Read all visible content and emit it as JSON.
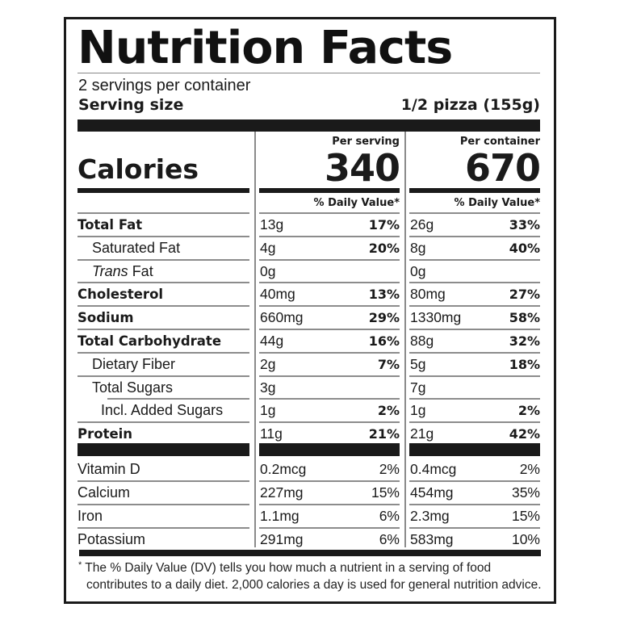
{
  "title": "Nutrition Facts",
  "servings_per_container": "2 servings per container",
  "serving_size": {
    "label": "Serving size",
    "value": "1/2 pizza (155g)"
  },
  "columns": [
    {
      "header": "Per serving",
      "calories": "340",
      "dv_header": "% Daily Value*"
    },
    {
      "header": "Per container",
      "calories": "670",
      "dv_header": "% Daily Value*"
    }
  ],
  "calories_label": "Calories",
  "nutrients": [
    {
      "label": "Total Fat",
      "style": "bold",
      "serving": {
        "amount": "13g",
        "dv": "17%"
      },
      "container": {
        "amount": "26g",
        "dv": "33%"
      }
    },
    {
      "label": "Saturated Fat",
      "style": "indent1",
      "serving": {
        "amount": "4g",
        "dv": "20%"
      },
      "container": {
        "amount": "8g",
        "dv": "40%"
      }
    },
    {
      "label_italic": "Trans",
      "label": " Fat",
      "style": "indent1",
      "serving": {
        "amount": "0g",
        "dv": ""
      },
      "container": {
        "amount": "0g",
        "dv": ""
      }
    },
    {
      "label": "Cholesterol",
      "style": "bold",
      "serving": {
        "amount": "40mg",
        "dv": "13%"
      },
      "container": {
        "amount": "80mg",
        "dv": "27%"
      }
    },
    {
      "label": "Sodium",
      "style": "bold",
      "serving": {
        "amount": "660mg",
        "dv": "29%"
      },
      "container": {
        "amount": "1330mg",
        "dv": "58%"
      }
    },
    {
      "label": "Total Carbohydrate",
      "style": "bold",
      "serving": {
        "amount": "44g",
        "dv": "16%"
      },
      "container": {
        "amount": "88g",
        "dv": "32%"
      }
    },
    {
      "label": "Dietary Fiber",
      "style": "indent1",
      "serving": {
        "amount": "2g",
        "dv": "7%"
      },
      "container": {
        "amount": "5g",
        "dv": "18%"
      }
    },
    {
      "label": "Total Sugars",
      "style": "indent1",
      "serving": {
        "amount": "3g",
        "dv": ""
      },
      "container": {
        "amount": "7g",
        "dv": ""
      }
    },
    {
      "label": "Incl. Added Sugars",
      "style": "indent2",
      "serving": {
        "amount": "1g",
        "dv": "2%"
      },
      "container": {
        "amount": "1g",
        "dv": "2%"
      }
    },
    {
      "label": "Protein",
      "style": "bold",
      "serving": {
        "amount": "11g",
        "dv": "21%"
      },
      "container": {
        "amount": "21g",
        "dv": "42%"
      }
    }
  ],
  "vitamins": [
    {
      "label": "Vitamin D",
      "serving": {
        "amount": "0.2mcg",
        "dv": "2%"
      },
      "container": {
        "amount": "0.4mcg",
        "dv": "2%"
      }
    },
    {
      "label": "Calcium",
      "serving": {
        "amount": "227mg",
        "dv": "15%"
      },
      "container": {
        "amount": "454mg",
        "dv": "35%"
      }
    },
    {
      "label": "Iron",
      "serving": {
        "amount": "1.1mg",
        "dv": "6%"
      },
      "container": {
        "amount": "2.3mg",
        "dv": "15%"
      }
    },
    {
      "label": "Potassium",
      "serving": {
        "amount": "291mg",
        "dv": "6%"
      },
      "container": {
        "amount": "583mg",
        "dv": "10%"
      }
    }
  ],
  "footnote": {
    "marker": "*",
    "line1": " The % Daily Value (DV) tells you how much a nutrient in a serving of food",
    "line2": "contributes to a daily diet. 2,000 calories a day is used for general nutrition advice."
  }
}
